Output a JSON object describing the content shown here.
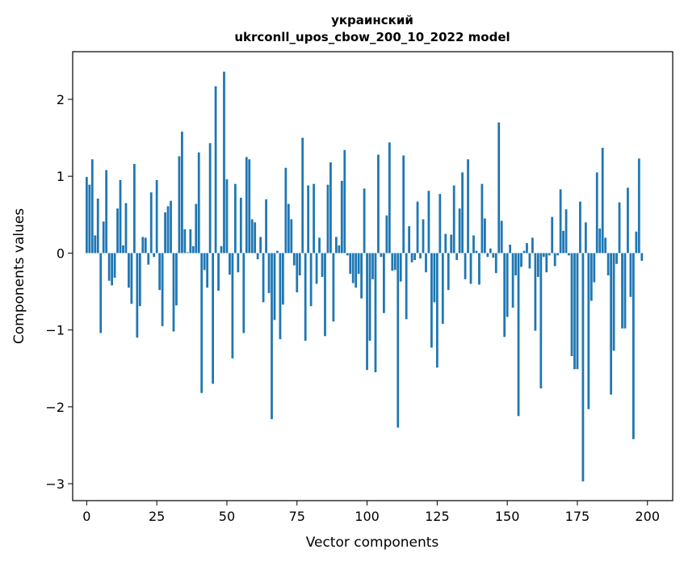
{
  "chart_data": {
    "type": "bar",
    "title_line1": "украинский",
    "title_line2": "ukrconll_upos_cbow_200_10_2022 model",
    "xlabel": "Vector components",
    "ylabel": "Components values",
    "xlim": [
      -5,
      209
    ],
    "ylim": [
      -3.22,
      2.62
    ],
    "x_ticks": [
      0,
      25,
      50,
      75,
      100,
      125,
      150,
      175,
      200
    ],
    "y_ticks": [
      -3,
      -2,
      -1,
      0,
      1,
      2
    ],
    "x_tick_labels": [
      "0",
      "25",
      "50",
      "75",
      "100",
      "125",
      "150",
      "175",
      "200"
    ],
    "y_tick_labels": [
      "−3",
      "−2",
      "−1",
      "0",
      "1",
      "2"
    ],
    "bar_color": "#1f77b4",
    "values": [
      0.99,
      0.89,
      1.22,
      0.23,
      0.71,
      -1.04,
      0.41,
      1.08,
      -0.36,
      -0.42,
      -0.32,
      0.58,
      0.95,
      0.1,
      0.65,
      -0.45,
      -0.66,
      1.16,
      -1.1,
      -0.69,
      0.21,
      0.2,
      -0.15,
      0.79,
      -0.05,
      0.95,
      -0.48,
      -0.95,
      0.53,
      0.61,
      0.68,
      -1.02,
      -0.68,
      1.26,
      1.58,
      0.31,
      0.01,
      0.31,
      0.09,
      0.64,
      1.31,
      -1.82,
      -0.22,
      -0.45,
      1.43,
      -1.7,
      2.17,
      -0.49,
      0.09,
      2.36,
      0.96,
      -0.28,
      -1.37,
      0.9,
      -0.25,
      0.72,
      -1.04,
      1.25,
      1.22,
      0.44,
      0.4,
      -0.08,
      0.21,
      -0.64,
      0.7,
      -0.52,
      -2.16,
      -0.87,
      0.03,
      -1.12,
      -0.67,
      1.11,
      0.64,
      0.44,
      -0.16,
      -0.51,
      -0.29,
      1.5,
      -1.14,
      0.88,
      -0.69,
      0.9,
      -0.4,
      0.2,
      -0.31,
      -1.08,
      0.89,
      1.18,
      -0.89,
      0.21,
      0.1,
      0.94,
      1.34,
      -0.03,
      -0.27,
      -0.39,
      -0.45,
      -0.27,
      -0.59,
      0.84,
      -1.52,
      -1.14,
      -0.34,
      -1.55,
      1.28,
      -0.05,
      -0.78,
      0.49,
      1.44,
      -0.23,
      -0.22,
      -2.27,
      -0.37,
      1.27,
      -0.86,
      0.35,
      -0.12,
      -0.09,
      0.67,
      -0.07,
      0.44,
      -0.25,
      0.81,
      -1.23,
      -0.64,
      -1.49,
      0.77,
      -0.92,
      0.25,
      -0.48,
      0.24,
      0.88,
      -0.09,
      0.58,
      1.05,
      -0.34,
      1.22,
      -0.4,
      0.23,
      0.03,
      -0.41,
      0.9,
      0.45,
      -0.05,
      0.06,
      -0.06,
      -0.26,
      1.7,
      0.42,
      -1.09,
      -0.83,
      0.11,
      -0.71,
      -0.29,
      -2.12,
      -0.18,
      0.03,
      0.13,
      -0.2,
      0.2,
      -1.01,
      -0.31,
      -1.76,
      -0.05,
      -0.25,
      -0.03,
      0.47,
      -0.17,
      -0.03,
      0.83,
      0.29,
      0.57,
      -0.03,
      -1.34,
      -1.51,
      -1.51,
      0.67,
      -2.97,
      0.4,
      -2.03,
      -0.62,
      -0.38,
      1.05,
      0.32,
      1.37,
      0.2,
      -0.29,
      -1.84,
      -1.27,
      -0.14,
      0.66,
      -0.98,
      -0.98,
      0.85,
      -0.57,
      -2.42,
      0.28,
      1.23,
      -0.1
    ]
  }
}
